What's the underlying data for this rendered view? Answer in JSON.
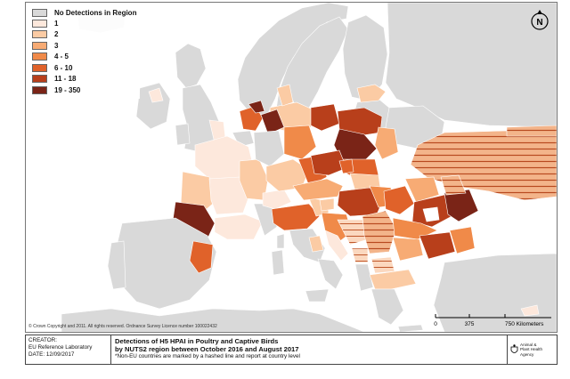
{
  "legend": {
    "title": "No Detections in Region",
    "title_color": "#d9d9d9",
    "items": [
      {
        "label": "1",
        "color": "#fde8dc"
      },
      {
        "label": "2",
        "color": "#fbcba4"
      },
      {
        "label": "3",
        "color": "#f7ab74"
      },
      {
        "label": "4 - 5",
        "color": "#f08a49"
      },
      {
        "label": "6 - 10",
        "color": "#e0622a"
      },
      {
        "label": "11 - 18",
        "color": "#b83f1b"
      },
      {
        "label": "19 - 350",
        "color": "#7a2417"
      }
    ]
  },
  "north_arrow": {
    "letter": "N",
    "icon": "north-arrow-icon"
  },
  "copyright": "© Crown Copyright and 2011. All rights reserved. Ordnance Survey Licence number 100022432",
  "scale": {
    "labels": [
      "0",
      "375",
      "750 Kilometers"
    ]
  },
  "footer": {
    "creator_label": "CREATOR:",
    "creator": "EU Reference Laboratory",
    "date_label": "DATE:",
    "date": "12/09/2017",
    "title_line1": "Detections of H5 HPAI in Poultry and Captive Birds",
    "title_line2": "by NUTS2 region between October 2016 and August 2017",
    "note": "*Non-EU countries are marked by a hashed line and report at country level",
    "agency_line1": "Animal &",
    "agency_line2": "Plant Health",
    "agency_line3": "Agency"
  },
  "colors": {
    "sea": "#ffffff",
    "land_no_detection": "#d9d9d9",
    "border": "#ffffff",
    "hatch_line": "#7a2417"
  }
}
